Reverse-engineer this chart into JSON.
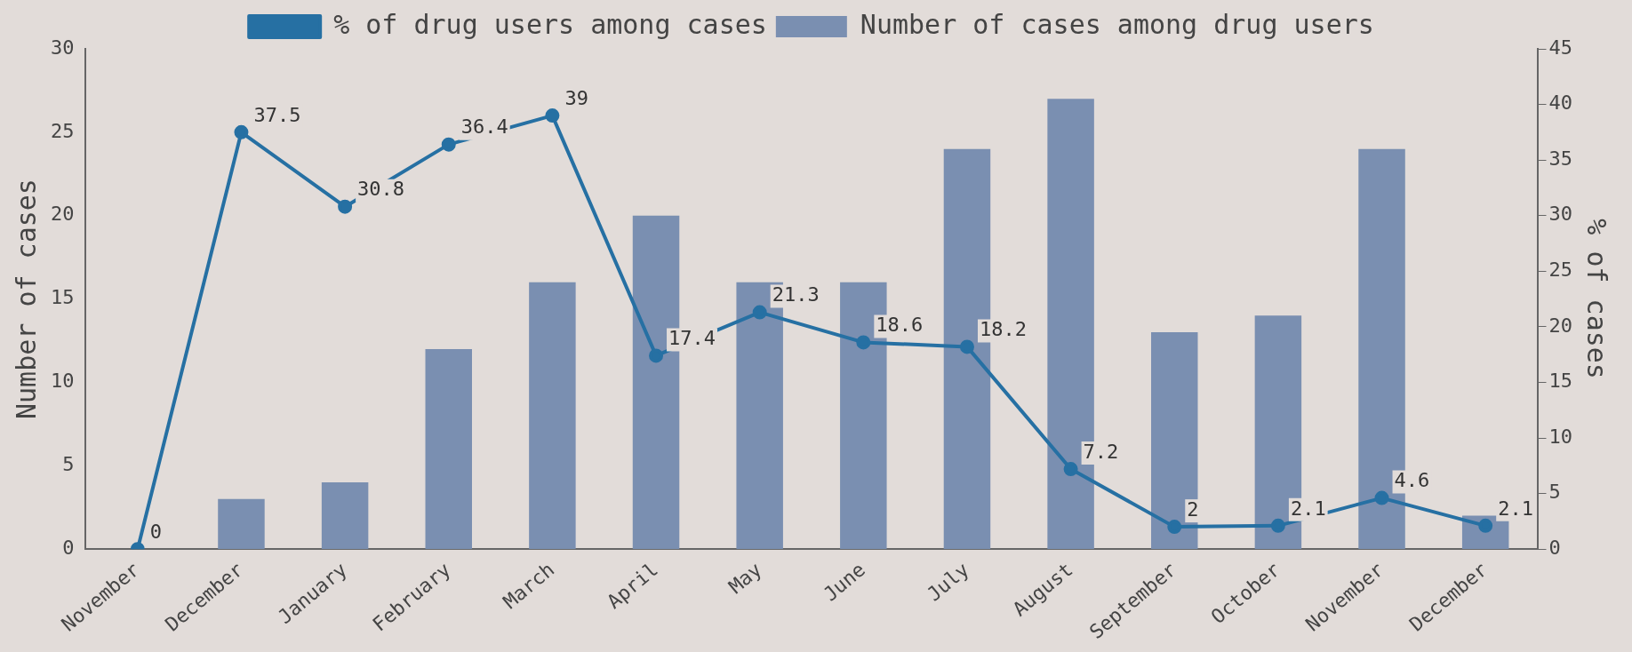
{
  "chart_data": {
    "type": "bar",
    "categories": [
      "November",
      "December",
      "January",
      "February",
      "March",
      "April",
      "May",
      "June",
      "July",
      "August",
      "September",
      "October",
      "November",
      "December"
    ],
    "series": [
      {
        "name": "Number of cases among drug users",
        "color": "#7a8fb1",
        "values": [
          0,
          3,
          4,
          12,
          16,
          20,
          16,
          16,
          24,
          27,
          13,
          14,
          24,
          2
        ]
      },
      {
        "type": "line",
        "name": "% of drug users among cases",
        "color": "#2670a3",
        "axis": "y2",
        "values": [
          0,
          37.5,
          30.8,
          36.4,
          39,
          17.4,
          21.3,
          18.6,
          18.2,
          7.2,
          2,
          2.1,
          4.6,
          2.1
        ],
        "value_labels": [
          "0",
          "37.5",
          "30.8",
          "36.4",
          "39",
          "17.4",
          "21.3",
          "18.6",
          "18.2",
          "7.2",
          "2",
          "2.1",
          "4.6",
          "2.1"
        ]
      }
    ],
    "ylabel": "Number of cases",
    "y2label": "% of cases",
    "ylim": [
      0,
      30
    ],
    "yticks": [
      0,
      5,
      10,
      15,
      20,
      25,
      30
    ],
    "y2lim": [
      0,
      45
    ],
    "y2ticks": [
      0,
      5,
      10,
      15,
      20,
      25,
      30,
      35,
      40,
      45
    ],
    "grid": false,
    "legend": "top",
    "marker": "circle",
    "line_style": "solid"
  }
}
